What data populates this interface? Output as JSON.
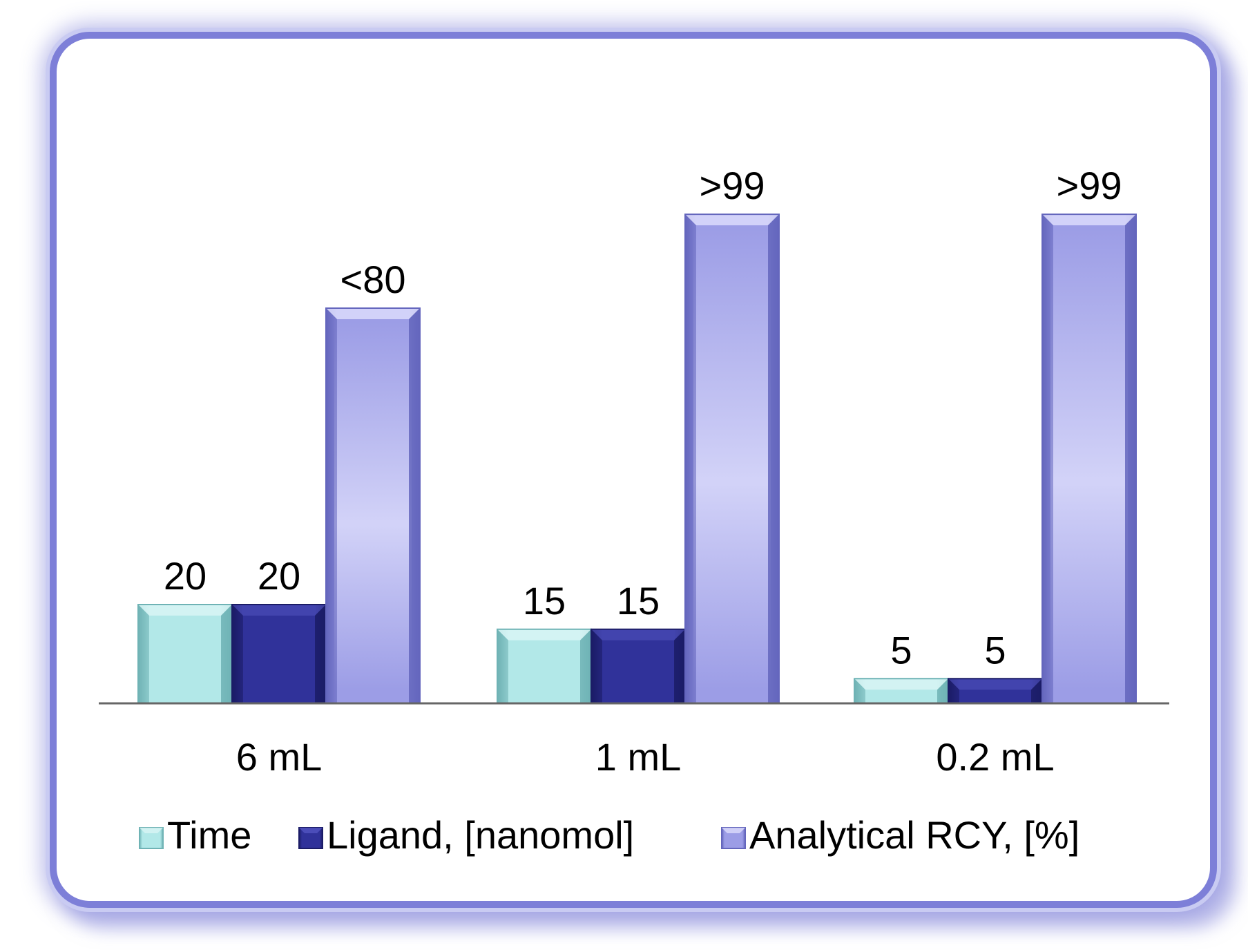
{
  "chart_data": {
    "type": "bar",
    "categories": [
      "6 mL",
      "1 mL",
      "0.2 mL"
    ],
    "series": [
      {
        "name": "Time",
        "values": [
          20,
          15,
          5
        ],
        "labels": [
          "20",
          "15",
          "5"
        ],
        "color_light": "#d8f4f4",
        "color_main": "#b2e8e8",
        "color_dark": "#6fb3b5"
      },
      {
        "name": "Ligand, [nanomol]",
        "values": [
          20,
          15,
          5
        ],
        "labels": [
          "20",
          "15",
          "5"
        ],
        "color_light": "#5254c0",
        "color_main": "#30329a",
        "color_dark": "#1b1c66"
      },
      {
        "name": "Analytical RCY, [%]",
        "values": [
          80,
          99,
          99
        ],
        "labels": [
          "<80",
          ">99",
          ">99"
        ],
        "color_light": "#dcdcfb",
        "color_main": "#9c9de6",
        "color_dark": "#6466bd"
      }
    ],
    "title": "",
    "xlabel": "",
    "ylabel": "",
    "ylim": [
      0,
      100
    ],
    "grid": false,
    "legend": "bottom"
  },
  "colors": {
    "frame_border": "#7d7fd8",
    "axis_line": "#666666"
  }
}
